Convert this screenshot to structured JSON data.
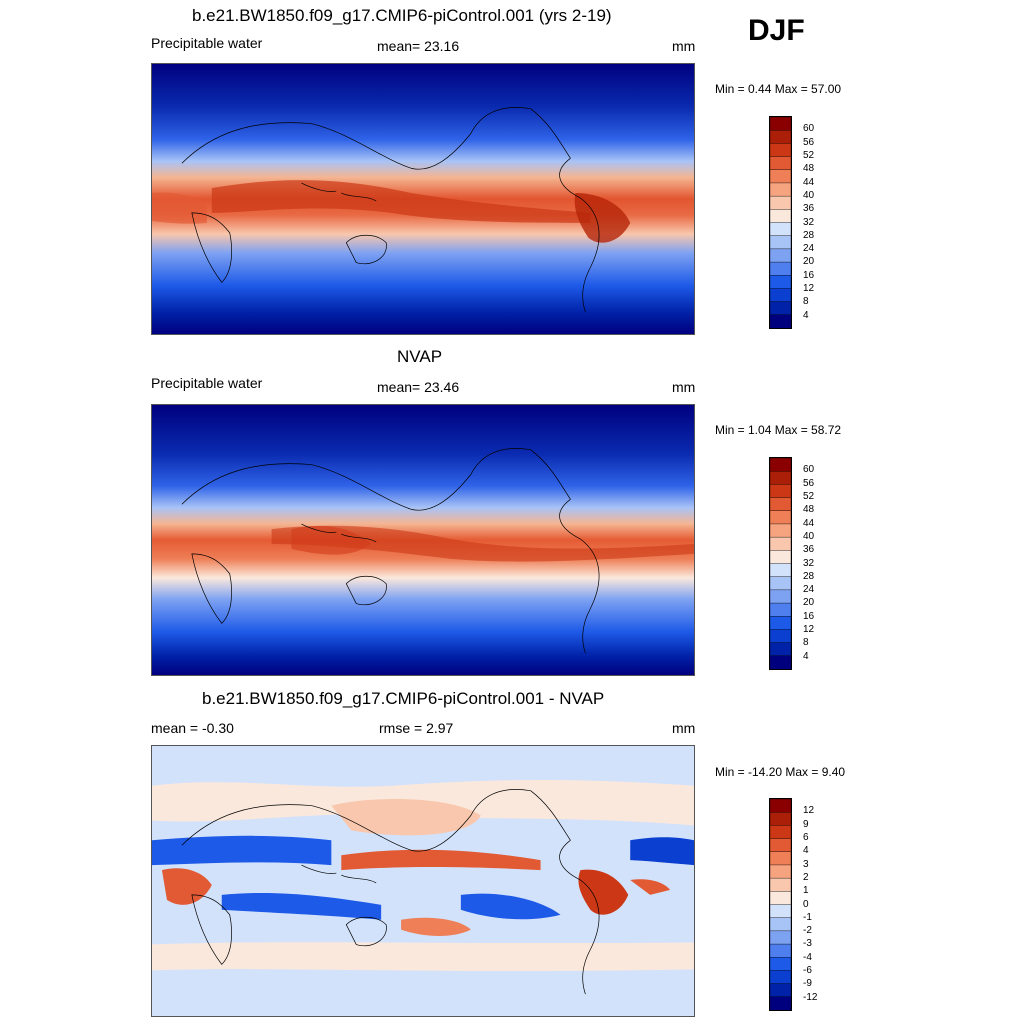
{
  "season": "DJF",
  "panels": [
    {
      "title": "b.e21.BW1850.f09_g17.CMIP6-piControl.001 (yrs 2-19)",
      "left_label": "Precipitable water",
      "center_label": "mean=  23.16",
      "units": "mm",
      "minmax": "Min =   0.44 Max =  57.00",
      "colorbar": {
        "colors": [
          "#00007f",
          "#0022a8",
          "#0a3fd0",
          "#1e5ae8",
          "#4f7fef",
          "#7ea2f2",
          "#a8c3f6",
          "#d2e2fb",
          "#fbe8dc",
          "#f8c7ad",
          "#f5a47f",
          "#ee7f57",
          "#e25a34",
          "#cc3816",
          "#ab1e07",
          "#8a0000"
        ],
        "labels": [
          "60",
          "56",
          "52",
          "48",
          "44",
          "40",
          "36",
          "32",
          "28",
          "24",
          "20",
          "16",
          "12",
          "8",
          "4"
        ]
      }
    },
    {
      "title": "NVAP",
      "left_label": "Precipitable water",
      "center_label": "mean=  23.46",
      "units": "mm",
      "minmax": "Min =   1.04 Max =  58.72",
      "colorbar": {
        "colors": [
          "#00007f",
          "#0022a8",
          "#0a3fd0",
          "#1e5ae8",
          "#4f7fef",
          "#7ea2f2",
          "#a8c3f6",
          "#d2e2fb",
          "#fbe8dc",
          "#f8c7ad",
          "#f5a47f",
          "#ee7f57",
          "#e25a34",
          "#cc3816",
          "#ab1e07",
          "#8a0000"
        ],
        "labels": [
          "60",
          "56",
          "52",
          "48",
          "44",
          "40",
          "36",
          "32",
          "28",
          "24",
          "20",
          "16",
          "12",
          "8",
          "4"
        ]
      }
    },
    {
      "title": "b.e21.BW1850.f09_g17.CMIP6-piControl.001 - NVAP",
      "left_label": "mean =  -0.30",
      "center_label": "rmse =   2.97",
      "units": "mm",
      "minmax": "Min = -14.20 Max =   9.40",
      "colorbar": {
        "colors": [
          "#00007f",
          "#0022a8",
          "#0a3fd0",
          "#1e5ae8",
          "#4f7fef",
          "#7ea2f2",
          "#a8c3f6",
          "#d2e2fb",
          "#fbe8dc",
          "#f8c7ad",
          "#f5a47f",
          "#ee7f57",
          "#e25a34",
          "#cc3816",
          "#ab1e07",
          "#8a0000"
        ],
        "labels": [
          "12",
          "9",
          "6",
          "4",
          "3",
          "2",
          "1",
          "0",
          "-1",
          "-2",
          "-3",
          "-4",
          "-6",
          "-9",
          "-12"
        ]
      }
    }
  ]
}
